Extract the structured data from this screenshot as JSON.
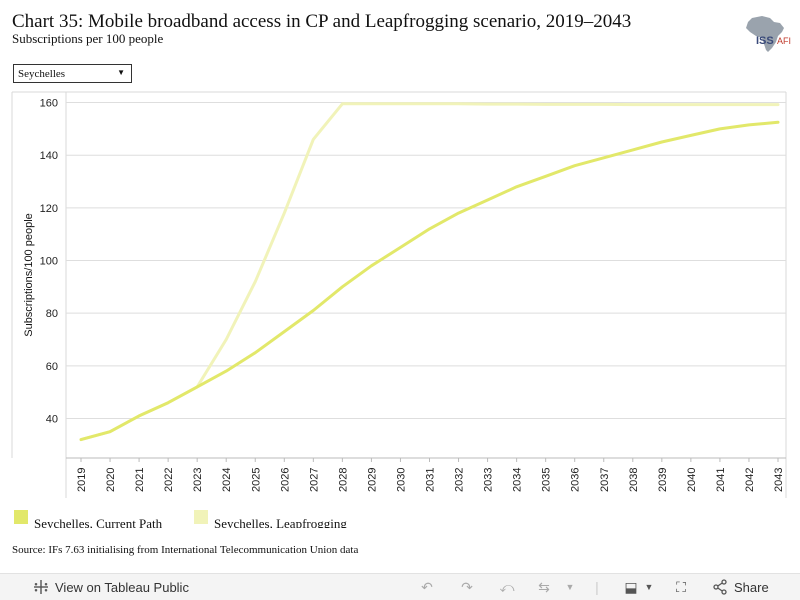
{
  "header": {
    "title": "Chart 35: Mobile broadband access in CP and Leapfrogging scenario, 2019–2043",
    "subtitle": "Subscriptions per 100 people",
    "logo_text": "ISS",
    "logo_suffix": "AFI"
  },
  "filter": {
    "selected": "Seychelles",
    "icon": "dropdown-caret"
  },
  "chart_data": {
    "type": "line",
    "x": [
      2019,
      2020,
      2021,
      2022,
      2023,
      2024,
      2025,
      2026,
      2027,
      2028,
      2029,
      2030,
      2031,
      2032,
      2033,
      2034,
      2035,
      2036,
      2037,
      2038,
      2039,
      2040,
      2041,
      2042,
      2043
    ],
    "ylabel": "Subscriptions/100 people",
    "ylim": [
      25,
      164
    ],
    "yticks": [
      40,
      60,
      80,
      100,
      120,
      140,
      160
    ],
    "grid": true,
    "legend_position": "bottom-left",
    "series": [
      {
        "name": "Seychelles, Current Path",
        "color": "#e2e86a",
        "values": [
          32,
          35,
          41,
          46,
          52,
          58,
          65,
          73,
          81,
          90,
          98,
          105,
          112,
          118,
          123,
          128,
          132,
          136,
          139,
          142,
          145,
          147.5,
          150,
          151.5,
          152.5
        ]
      },
      {
        "name": "Seychelles, Leapfrogging",
        "color": "#f1f3b9",
        "values": [
          32,
          35,
          41,
          46,
          52,
          70,
          92,
          118,
          146,
          159.5,
          159.5,
          159.5,
          159.5,
          159.5,
          159.4,
          159.4,
          159.3,
          159.3,
          159.3,
          159.2,
          159.2,
          159.2,
          159.2,
          159.2,
          159.2
        ]
      }
    ]
  },
  "legend": {
    "items": [
      {
        "label": "Seychelles, Current Path",
        "color": "#e2e86a"
      },
      {
        "label": "Seychelles, Leapfrogging",
        "color": "#f1f3b9"
      }
    ]
  },
  "source": "Source: IFs 7.63 initialising from International Telecommunication Union data",
  "footer": {
    "view_label": "View on Tableau Public",
    "share_label": "Share",
    "icons": [
      "tableau-icon",
      "undo-icon",
      "redo-icon",
      "revert-icon",
      "refresh-icon",
      "pause-icon",
      "download-icon",
      "fullscreen-icon",
      "share-icon"
    ]
  }
}
